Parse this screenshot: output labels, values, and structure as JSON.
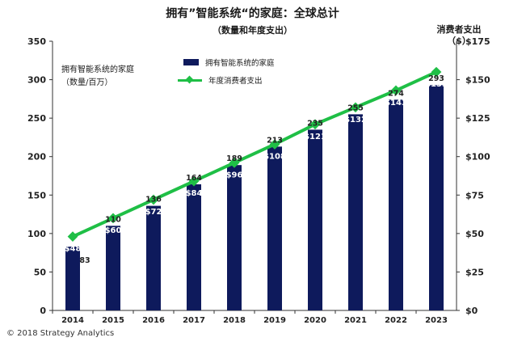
{
  "header": {
    "title": "拥有”智能系统“的家庭：全球总计",
    "subtitle": "（数量和年度支出）",
    "right_axis_title_line1": "消费者支出",
    "right_axis_title_line2": "（$）",
    "left_axis_label_line1": "拥有智能系统的家庭",
    "left_axis_label_line2": "（数量/百万）"
  },
  "footer": {
    "copyright": "© 2018 Strategy Analytics"
  },
  "colors": {
    "bar": "#0e1a5c",
    "line": "#1fbf46",
    "axis": "#333333"
  },
  "chart_data": {
    "type": "bar",
    "categories": [
      "2014",
      "2015",
      "2016",
      "2017",
      "2018",
      "2019",
      "2020",
      "2021",
      "2022",
      "2023"
    ],
    "series": [
      {
        "name": "拥有智能系统的家庭",
        "type": "bar",
        "axis": "left",
        "values": [
          83,
          110,
          136,
          164,
          189,
          213,
          235,
          255,
          274,
          293
        ]
      },
      {
        "name": "年度消费者支出",
        "type": "line",
        "axis": "right",
        "values": [
          48,
          60,
          72,
          84,
          96,
          108,
          121,
          132,
          143,
          155
        ],
        "labels": [
          "$48",
          "$60",
          "$72",
          "$84",
          "$96",
          "$108",
          "$121",
          "$132",
          "$143",
          "$155"
        ]
      }
    ],
    "ylim_left": [
      0,
      350
    ],
    "yticks_left": [
      "0",
      "50",
      "100",
      "150",
      "200",
      "250",
      "300",
      "350"
    ],
    "ylim_right": [
      0,
      175
    ],
    "yticks_right": [
      "$0",
      "$25",
      "$50",
      "$75",
      "$100",
      "$125",
      "$150",
      "$175"
    ],
    "grid": false,
    "legend_position": "top-center"
  }
}
